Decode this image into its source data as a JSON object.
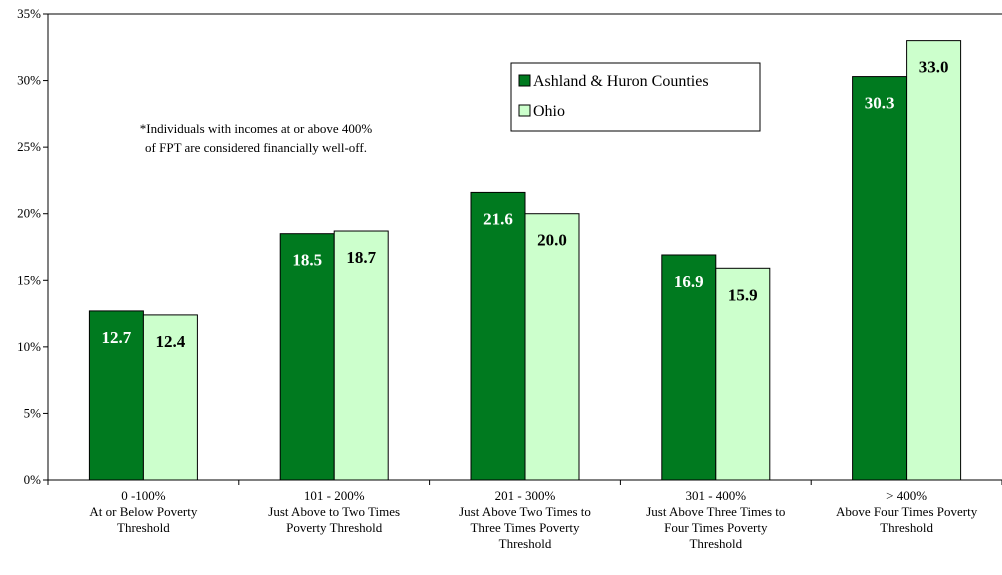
{
  "chart_data": {
    "type": "bar",
    "categories": [
      [
        "0 -100%",
        "At or Below Poverty",
        "Threshold"
      ],
      [
        "101 - 200%",
        "Just Above to Two Times",
        "Poverty Threshold"
      ],
      [
        "201 - 300%",
        "Just Above Two Times to",
        "Three Times Poverty",
        "Threshold"
      ],
      [
        "301 - 400%",
        "Just Above Three Times to",
        "Four Times Poverty",
        "Threshold"
      ],
      [
        "> 400%",
        "Above Four Times Poverty",
        "Threshold"
      ]
    ],
    "series": [
      {
        "name": "Ashland & Huron Counties",
        "values": [
          12.7,
          18.5,
          21.6,
          16.9,
          30.3
        ],
        "color": "#007a1f",
        "label_color": "#ffffff"
      },
      {
        "name": "Ohio",
        "values": [
          12.4,
          18.7,
          20.0,
          15.9,
          33.0
        ],
        "color": "#ccffcc",
        "label_color": "#000000"
      }
    ],
    "y_ticks": [
      "0%",
      "5%",
      "10%",
      "15%",
      "20%",
      "25%",
      "30%",
      "35%"
    ],
    "ylim": [
      0,
      35
    ],
    "grid": false,
    "legend_position": "top-center",
    "annotation": [
      "*Individuals with incomes at or above 400%",
      "of FPT are considered financially well-off."
    ]
  }
}
